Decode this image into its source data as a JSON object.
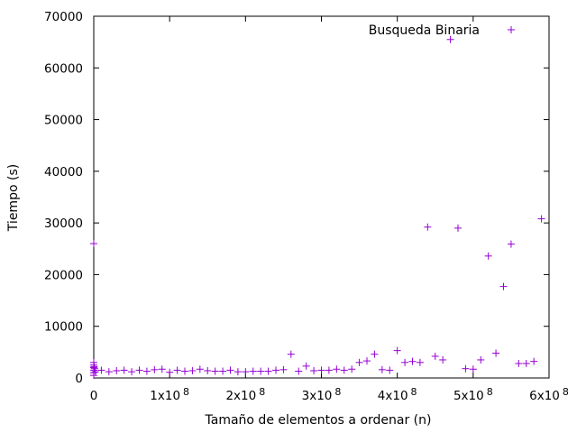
{
  "chart_data": {
    "type": "scatter",
    "title": "",
    "xlabel": "Tamaño de elementos a ordenar (n)",
    "ylabel": "Tiempo (s)",
    "xlim": [
      0,
      600000000
    ],
    "ylim": [
      0,
      70000
    ],
    "x_ticks": [
      {
        "value": 0,
        "label": "0",
        "exp": ""
      },
      {
        "value": 100000000,
        "label": "1x10",
        "exp": "8"
      },
      {
        "value": 200000000,
        "label": "2x10",
        "exp": "8"
      },
      {
        "value": 300000000,
        "label": "3x10",
        "exp": "8"
      },
      {
        "value": 400000000,
        "label": "4x10",
        "exp": "8"
      },
      {
        "value": 500000000,
        "label": "5x10",
        "exp": "8"
      },
      {
        "value": 600000000,
        "label": "6x10",
        "exp": "8"
      }
    ],
    "y_ticks": [
      {
        "value": 0,
        "label": "0"
      },
      {
        "value": 10000,
        "label": "10000"
      },
      {
        "value": 20000,
        "label": "20000"
      },
      {
        "value": 30000,
        "label": "30000"
      },
      {
        "value": 40000,
        "label": "40000"
      },
      {
        "value": 50000,
        "label": "50000"
      },
      {
        "value": 60000,
        "label": "60000"
      },
      {
        "value": 70000,
        "label": "70000"
      }
    ],
    "grid": false,
    "legend_position": "top-right",
    "series": [
      {
        "name": "Busqueda Binaria",
        "color": "#9400d3",
        "marker": "plus",
        "points": [
          [
            0,
            26000
          ],
          [
            0,
            3000
          ],
          [
            0,
            2500
          ],
          [
            0,
            2000
          ],
          [
            0,
            1500
          ],
          [
            0,
            1000
          ],
          [
            0,
            500
          ],
          [
            500000,
            2200
          ],
          [
            1000000,
            1800
          ],
          [
            2000000,
            1200
          ],
          [
            10000000,
            1500
          ],
          [
            20000000,
            1200
          ],
          [
            30000000,
            1400
          ],
          [
            40000000,
            1500
          ],
          [
            50000000,
            1200
          ],
          [
            60000000,
            1500
          ],
          [
            70000000,
            1300
          ],
          [
            80000000,
            1600
          ],
          [
            90000000,
            1700
          ],
          [
            100000000,
            1100
          ],
          [
            110000000,
            1500
          ],
          [
            120000000,
            1300
          ],
          [
            130000000,
            1400
          ],
          [
            140000000,
            1700
          ],
          [
            150000000,
            1400
          ],
          [
            160000000,
            1300
          ],
          [
            170000000,
            1300
          ],
          [
            180000000,
            1500
          ],
          [
            190000000,
            1200
          ],
          [
            200000000,
            1200
          ],
          [
            210000000,
            1300
          ],
          [
            220000000,
            1300
          ],
          [
            230000000,
            1300
          ],
          [
            240000000,
            1500
          ],
          [
            250000000,
            1600
          ],
          [
            260000000,
            4600
          ],
          [
            270000000,
            1300
          ],
          [
            280000000,
            2300
          ],
          [
            290000000,
            1400
          ],
          [
            300000000,
            1500
          ],
          [
            310000000,
            1500
          ],
          [
            320000000,
            1700
          ],
          [
            330000000,
            1500
          ],
          [
            340000000,
            1700
          ],
          [
            350000000,
            3000
          ],
          [
            360000000,
            3300
          ],
          [
            370000000,
            4600
          ],
          [
            380000000,
            1600
          ],
          [
            390000000,
            1500
          ],
          [
            400000000,
            5300
          ],
          [
            410000000,
            3000
          ],
          [
            420000000,
            3200
          ],
          [
            430000000,
            3000
          ],
          [
            440000000,
            29200
          ],
          [
            450000000,
            4200
          ],
          [
            460000000,
            3500
          ],
          [
            470000000,
            65500
          ],
          [
            480000000,
            29000
          ],
          [
            490000000,
            1800
          ],
          [
            500000000,
            1700
          ],
          [
            510000000,
            3500
          ],
          [
            520000000,
            23600
          ],
          [
            530000000,
            4800
          ],
          [
            540000000,
            17700
          ],
          [
            550000000,
            25900
          ],
          [
            560000000,
            2800
          ],
          [
            570000000,
            2800
          ],
          [
            580000000,
            3200
          ],
          [
            590000000,
            30800
          ]
        ]
      }
    ]
  }
}
